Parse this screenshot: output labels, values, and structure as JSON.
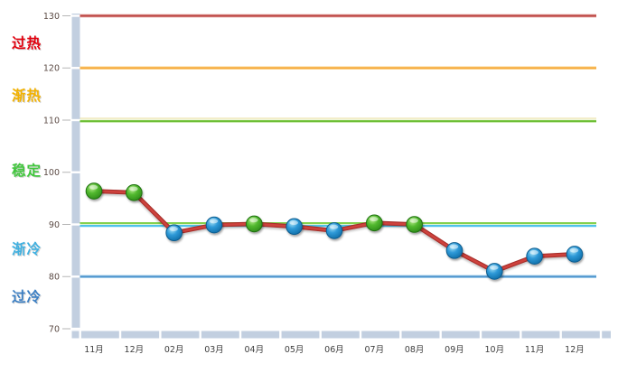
{
  "chart_data": {
    "type": "line",
    "title": "",
    "categories": [
      "11月",
      "12月",
      "02月",
      "03月",
      "04月",
      "05月",
      "06月",
      "07月",
      "08月",
      "09月",
      "10月",
      "11月",
      "12月"
    ],
    "series": [
      {
        "name": "",
        "values": [
          96.4,
          96.1,
          88.4,
          89.9,
          90.1,
          89.6,
          88.8,
          90.3,
          90.0,
          85.0,
          81.0,
          83.9,
          84.3
        ],
        "line_color": "#ce423d",
        "marker_colors": [
          "green",
          "green",
          "blue",
          "blue",
          "green",
          "blue",
          "blue",
          "green",
          "green",
          "blue",
          "blue",
          "blue",
          "blue"
        ]
      }
    ],
    "ylim": [
      70,
      130
    ],
    "yticks": [
      70,
      80,
      90,
      100,
      110,
      120,
      130
    ],
    "grid": "off",
    "legend": "none",
    "zones": [
      {
        "label": "过热",
        "name": "overheated",
        "color": "#e3000e",
        "boundary": 130,
        "line_style": "red"
      },
      {
        "label": "渐热",
        "name": "warming",
        "color": "#f3b200",
        "boundary": 120,
        "line_style": "orange"
      },
      {
        "label": "稳定",
        "name": "stable",
        "color": "#41c73d",
        "boundary": 110,
        "line_style": "yellow-green"
      },
      {
        "label": "渐冷",
        "name": "cooling",
        "color": "#41b1e1",
        "boundary": 90,
        "line_style": "green-cyan"
      },
      {
        "label": "过冷",
        "name": "overcooled",
        "color": "#3b7fc4",
        "boundary": 80,
        "line_style": "blue"
      }
    ]
  },
  "colors": {
    "marker_green": "#49b52c",
    "marker_blue": "#2f9ad8",
    "axis_band": "#c2cfe0",
    "tick_label": "#5b4a44",
    "month_label": "#3d3d3d"
  }
}
